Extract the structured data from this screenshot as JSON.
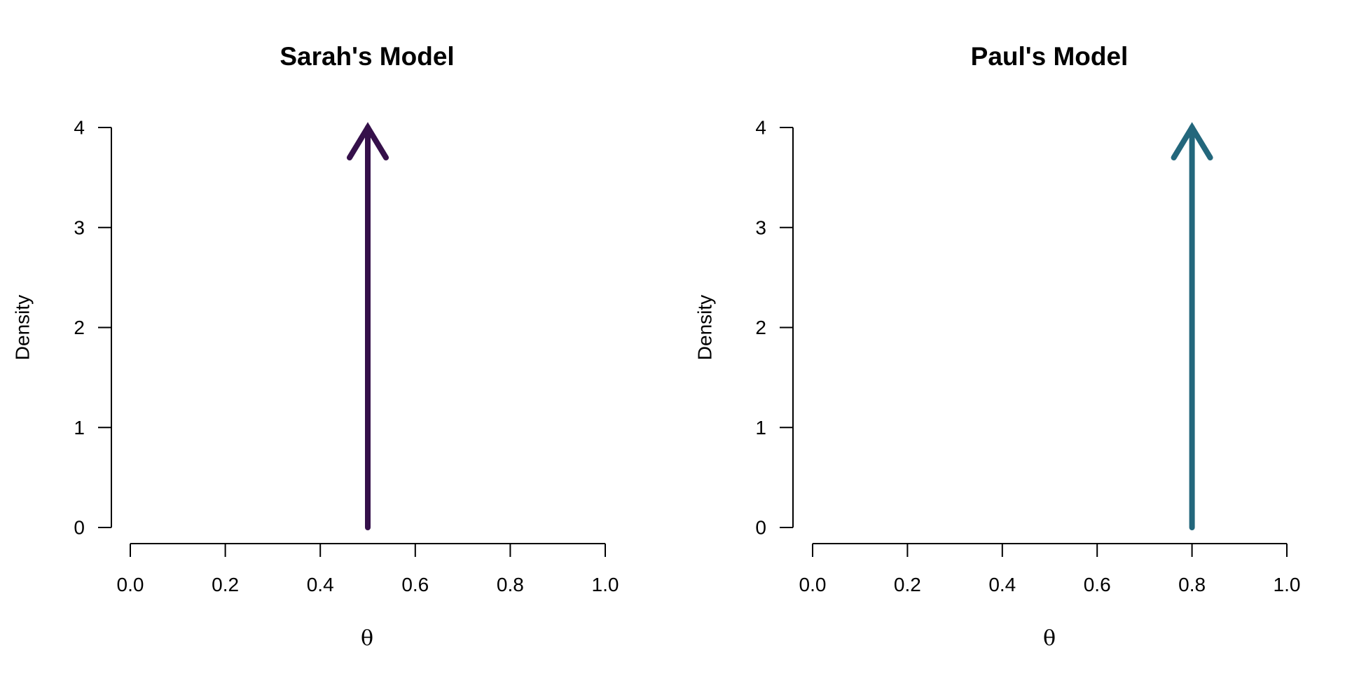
{
  "chart_data": [
    {
      "type": "spike",
      "title": "Sarah's Model",
      "xlabel": "θ",
      "ylabel": "Density",
      "xlim": [
        0,
        1
      ],
      "ylim": [
        0,
        4
      ],
      "x_ticks": [
        "0.0",
        "0.2",
        "0.4",
        "0.6",
        "0.8",
        "1.0"
      ],
      "y_ticks": [
        "0",
        "1",
        "2",
        "3",
        "4"
      ],
      "spike": {
        "x": 0.5,
        "y_top": 4
      },
      "color": "#35104a",
      "grid": false,
      "legend": "none"
    },
    {
      "type": "spike",
      "title": "Paul's Model",
      "xlabel": "θ",
      "ylabel": "Density",
      "xlim": [
        0,
        1
      ],
      "ylim": [
        0,
        4
      ],
      "x_ticks": [
        "0.0",
        "0.2",
        "0.4",
        "0.6",
        "0.8",
        "1.0"
      ],
      "y_ticks": [
        "0",
        "1",
        "2",
        "3",
        "4"
      ],
      "spike": {
        "x": 0.8,
        "y_top": 4
      },
      "color": "#23677c",
      "grid": false,
      "legend": "none"
    }
  ]
}
